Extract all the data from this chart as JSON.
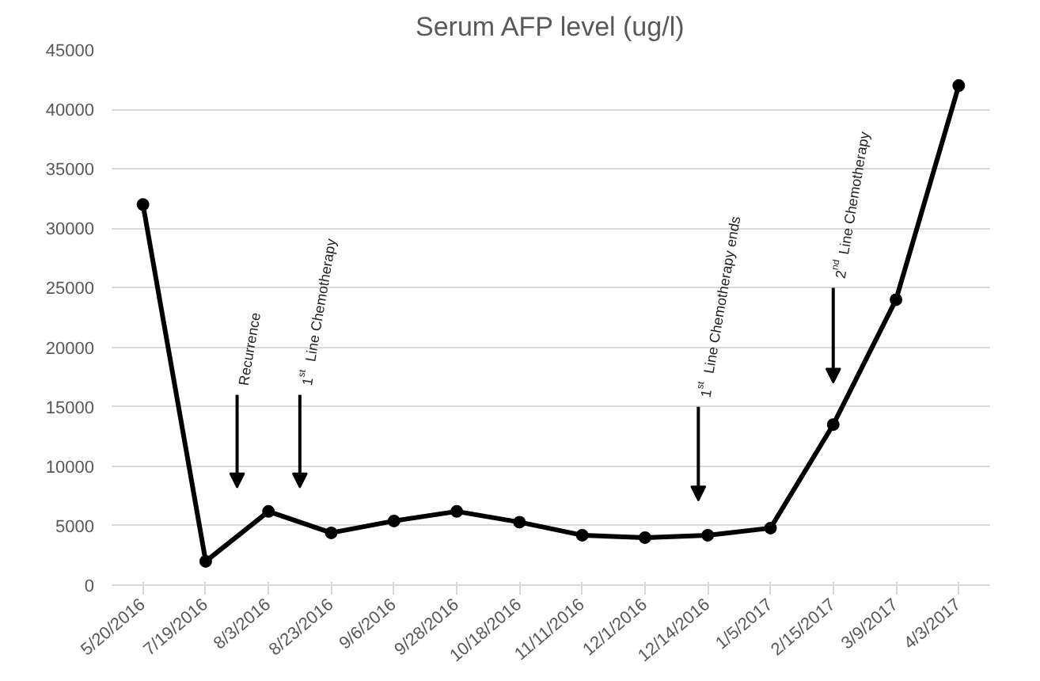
{
  "chart_data": {
    "type": "line",
    "title": "Serum AFP level (ug/l)",
    "categories": [
      "5/20/2016",
      "7/19/2016",
      "8/3/2016",
      "8/23/2016",
      "9/6/2016",
      "9/28/2016",
      "10/18/2016",
      "11/11/2016",
      "12/1/2016",
      "12/14/2016",
      "1/5/2017",
      "2/15/2017",
      "3/9/2017",
      "4/3/2017"
    ],
    "series": [
      {
        "color": "#000000",
        "values": [
          32000,
          2000,
          6200,
          4400,
          5400,
          6200,
          5300,
          4200,
          4000,
          4200,
          4800,
          13500,
          24000,
          42000
        ]
      }
    ],
    "ylim": [
      0,
      45000
    ],
    "yticks": [
      0,
      5000,
      10000,
      15000,
      20000,
      25000,
      30000,
      35000,
      40000,
      45000
    ],
    "grid": "y",
    "marker": "circle",
    "line_style": "solid",
    "annotations": [
      "Recurrence",
      "1$^{st}$ Line Chemotherapy",
      "1$^{st}$ Line Chemotherapy ends",
      "2$^{nd}$ Line Chemotherapy"
    ]
  }
}
